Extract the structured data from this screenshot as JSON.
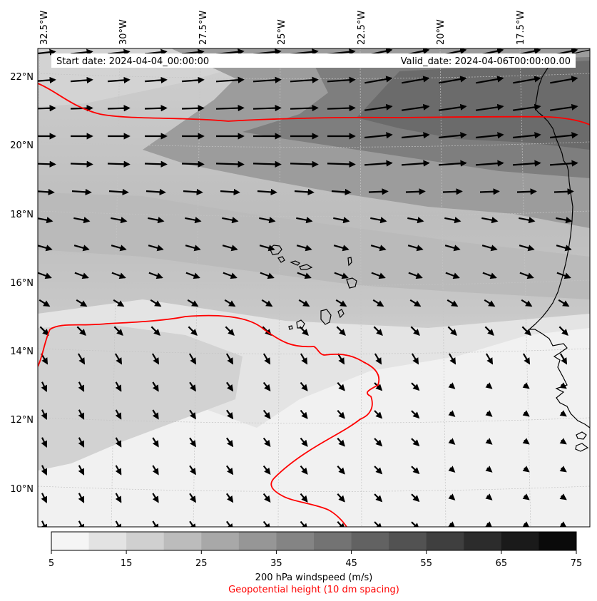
{
  "header": {
    "start_date": "Start date: 2024-04-04_00:00:00",
    "valid_date": "Valid_date: 2024-04-06T00:00:00.00"
  },
  "map": {
    "longitude_labels": [
      "32.5°W",
      "30°W",
      "27.5°W",
      "25°W",
      "22.5°W",
      "20°W",
      "17.5°W"
    ],
    "latitude_labels": [
      "22°N",
      "20°N",
      "18°N",
      "16°N",
      "14°N",
      "12°N",
      "10°N"
    ],
    "geopotential_contour_color": "#ff0000",
    "coastline_color": "#000000",
    "arrow_color": "#000000"
  },
  "colorbar": {
    "ticks": [
      "5",
      "15",
      "25",
      "35",
      "45",
      "55",
      "65",
      "75"
    ],
    "levels": [
      5,
      10,
      15,
      20,
      25,
      30,
      35,
      40,
      45,
      50,
      55,
      60,
      65,
      70,
      75
    ],
    "colors": [
      "#f5f5f5",
      "#e3e3e3",
      "#d0d0d0",
      "#bcbcbc",
      "#a8a8a8",
      "#969696",
      "#848484",
      "#737373",
      "#626262",
      "#525252",
      "#3f3f3f",
      "#2c2c2c",
      "#1a1a1a",
      "#0a0a0a"
    ],
    "label": "200 hPa windspeed (m/s)",
    "sublabel": "Geopotential height (10 dm spacing)",
    "sublabel_color": "#ff0000"
  }
}
